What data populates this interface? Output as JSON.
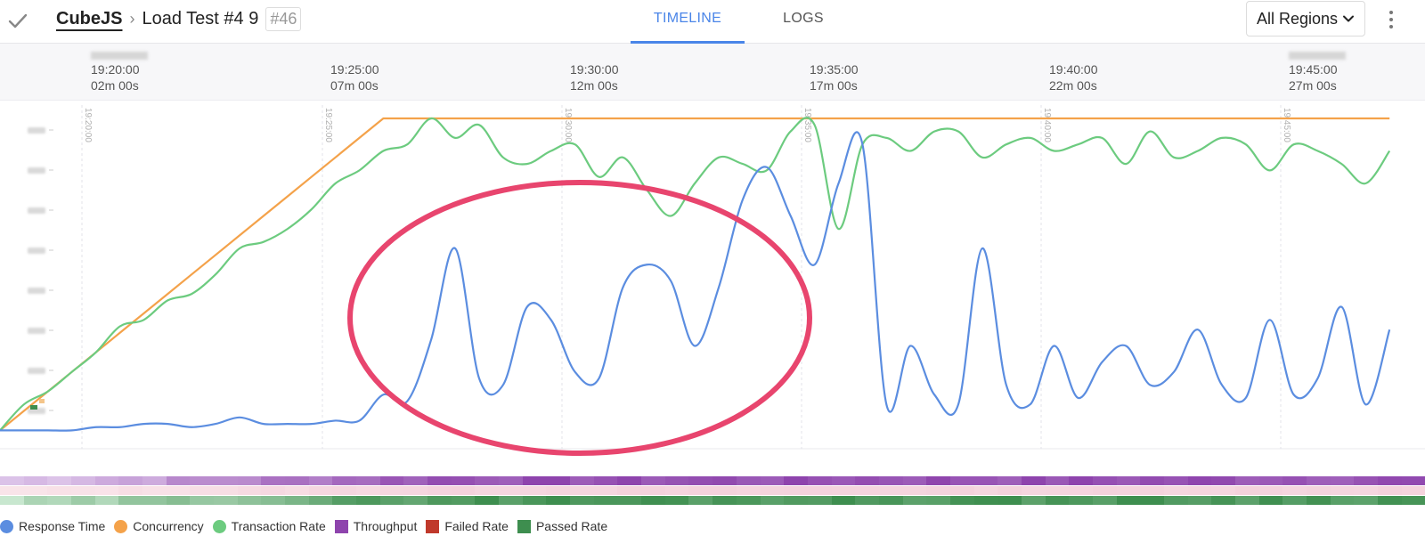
{
  "header": {
    "project": "CubeJS",
    "test_name": "Load Test #4 9",
    "run_badge": "#46",
    "tabs": [
      {
        "label": "TIMELINE",
        "active": true
      },
      {
        "label": "LOGS",
        "active": false
      }
    ],
    "region_select": "All Regions"
  },
  "colors": {
    "accent": "#4a85e8",
    "response_time": "#5b8de0",
    "concurrency": "#f4a24a",
    "transaction_rate": "#6ccb7f",
    "throughput": "#8e44ad",
    "failed_rate": "#c0392b",
    "passed_rate": "#3e8e4f",
    "highlight_ellipse": "#e8456e"
  },
  "timeline_ticks": [
    {
      "time": "19:20:00",
      "elapsed": "02m 00s",
      "date_blurred": true
    },
    {
      "time": "19:25:00",
      "elapsed": "07m 00s",
      "date_blurred": false
    },
    {
      "time": "19:30:00",
      "elapsed": "12m 00s",
      "date_blurred": false
    },
    {
      "time": "19:35:00",
      "elapsed": "17m 00s",
      "date_blurred": false
    },
    {
      "time": "19:40:00",
      "elapsed": "22m 00s",
      "date_blurred": false
    },
    {
      "time": "19:45:00",
      "elapsed": "27m 00s",
      "date_blurred": true
    }
  ],
  "chart_data": {
    "type": "line",
    "x_label_ticks": [
      "19:20:00",
      "19:25:00",
      "19:30:00",
      "19:35:00",
      "19:40:00",
      "19:45:00"
    ],
    "x_minutes": [
      0,
      1,
      2,
      3,
      4,
      5,
      6,
      7,
      8,
      9,
      10,
      11,
      12,
      13,
      14,
      15,
      16,
      17,
      18,
      19,
      20,
      21,
      22,
      23,
      24,
      25,
      26,
      27,
      28,
      29,
      30,
      31,
      32,
      33,
      34,
      35,
      36,
      37,
      38,
      39,
      40,
      41,
      42,
      43,
      44,
      45,
      46,
      47,
      48,
      49,
      50,
      51,
      52,
      53,
      54,
      55,
      56,
      57,
      58
    ],
    "y_tick_labels_blurred": true,
    "grid": "vertical",
    "series": [
      {
        "name": "Response Time",
        "values": [
          4,
          4,
          4,
          4,
          5,
          5,
          6,
          6,
          5,
          6,
          8,
          6,
          6,
          6,
          7,
          7,
          15,
          13,
          32,
          60,
          20,
          18,
          42,
          38,
          22,
          20,
          48,
          55,
          50,
          30,
          48,
          75,
          85,
          70,
          55,
          80,
          92,
          12,
          30,
          15,
          12,
          60,
          18,
          12,
          30,
          14,
          25,
          30,
          18,
          22,
          35,
          18,
          14,
          38,
          15,
          20,
          42,
          12,
          35
        ]
      },
      {
        "name": "Concurrency",
        "values": [
          4,
          10,
          16,
          22,
          28,
          34,
          40,
          46,
          52,
          58,
          64,
          70,
          76,
          82,
          88,
          94,
          100,
          100,
          100,
          100,
          100,
          100,
          100,
          100,
          100,
          100,
          100,
          100,
          100,
          100,
          100,
          100,
          100,
          100,
          100,
          100,
          100,
          100,
          100,
          100,
          100,
          100,
          100,
          100,
          100,
          100,
          100,
          100,
          100,
          100,
          100,
          100,
          100,
          100,
          100,
          100,
          100,
          100,
          100
        ]
      },
      {
        "name": "Transaction Rate",
        "values": [
          4,
          12,
          16,
          22,
          28,
          36,
          38,
          44,
          46,
          52,
          60,
          62,
          66,
          72,
          80,
          84,
          90,
          92,
          100,
          94,
          98,
          88,
          86,
          90,
          92,
          82,
          88,
          78,
          70,
          80,
          88,
          86,
          84,
          96,
          98,
          66,
          92,
          94,
          90,
          96,
          96,
          88,
          92,
          94,
          90,
          92,
          94,
          86,
          96,
          88,
          90,
          94,
          92,
          84,
          92,
          90,
          86,
          80,
          90
        ]
      },
      {
        "name": "Throughput",
        "values": []
      },
      {
        "name": "Failed Rate",
        "values": []
      },
      {
        "name": "Passed Rate",
        "values": []
      }
    ],
    "annotation": "highlight ellipse around 19:25–19:35 response time spikes"
  },
  "legend": [
    {
      "label": "Response Time",
      "shape": "dot",
      "color": "#5b8de0"
    },
    {
      "label": "Concurrency",
      "shape": "dot",
      "color": "#f4a24a"
    },
    {
      "label": "Transaction Rate",
      "shape": "dot",
      "color": "#6ccb7f"
    },
    {
      "label": "Throughput",
      "shape": "square",
      "color": "#8e44ad"
    },
    {
      "label": "Failed Rate",
      "shape": "square",
      "color": "#c0392b"
    },
    {
      "label": "Passed Rate",
      "shape": "square",
      "color": "#3e8e4f"
    }
  ]
}
